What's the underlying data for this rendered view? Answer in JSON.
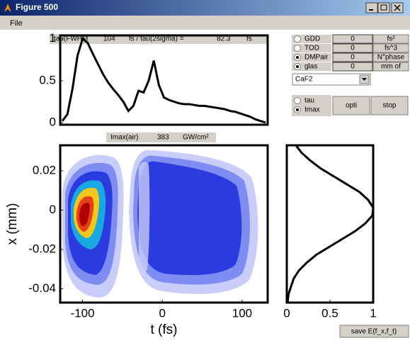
{
  "window": {
    "title": "Figure 500",
    "menu": [
      "File"
    ]
  },
  "info_bar": {
    "label": "tau(FWHM",
    "fwhm": "104",
    "middle": "fs / tau(2sigma) =",
    "sigma": "82.3",
    "unit": "fs"
  },
  "imax_bar": {
    "label": "Imax(air)",
    "value": "383",
    "unit": "GW/cm²"
  },
  "controls": {
    "rows": [
      {
        "label": "GDD",
        "checked": false,
        "value": "0",
        "unit": "fs²"
      },
      {
        "label": "TOD",
        "checked": false,
        "value": "0",
        "unit": "fs^3"
      },
      {
        "label": "DMPair",
        "checked": true,
        "value": "0",
        "unit": "N°phase"
      },
      {
        "label": "glas",
        "checked": true,
        "value": "0",
        "unit": "mm of"
      }
    ],
    "material": "CaF2",
    "mode": [
      {
        "label": "tau",
        "checked": false
      },
      {
        "label": "Imax",
        "checked": true
      }
    ],
    "buttons": [
      "opti",
      "stop"
    ],
    "save": "save E(f_x,f_t)"
  },
  "chart_data": [
    {
      "type": "line",
      "color": "#000000",
      "ylim": [
        -0.025,
        1.04
      ],
      "yticks": [
        0,
        0.5,
        1
      ],
      "values": [
        0.02,
        0.1,
        0.4,
        0.8,
        1.0,
        0.95,
        0.82,
        0.7,
        0.58,
        0.48,
        0.4,
        0.33,
        0.25,
        0.14,
        0.2,
        0.38,
        0.36,
        0.5,
        0.74,
        0.45,
        0.3,
        0.27,
        0.25,
        0.23,
        0.22,
        0.22,
        0.21,
        0.2,
        0.2,
        0.19,
        0.18,
        0.17,
        0.16,
        0.14,
        0.13,
        0.11,
        0.09,
        0.07,
        0.04,
        0.02,
        0.0
      ]
    },
    {
      "type": "contour",
      "xlabel": "t (fs)",
      "ylabel": "x (mm)",
      "xlim": [
        -128,
        132
      ],
      "ylim": [
        -0.047,
        0.033
      ],
      "xticks": [
        -100,
        0,
        100
      ],
      "yticks": [
        0.02,
        0,
        -0.02,
        -0.04
      ]
    },
    {
      "type": "profile",
      "color": "#000000",
      "xlim": [
        0,
        1
      ],
      "xticks": [
        0,
        0.5,
        1
      ],
      "ylim": [
        -0.047,
        0.033
      ],
      "y": [
        0.0333,
        0.0293,
        0.0253,
        0.0213,
        0.0173,
        0.0133,
        0.0093,
        0.0053,
        0.0013,
        -0.0027,
        -0.0067,
        -0.0107,
        -0.0147,
        -0.0187,
        -0.0227,
        -0.0267,
        -0.0307,
        -0.0347,
        -0.0387,
        -0.0427,
        -0.0467
      ],
      "values": [
        0.1,
        0.17,
        0.27,
        0.39,
        0.54,
        0.69,
        0.84,
        0.94,
        1.0,
        0.99,
        0.91,
        0.79,
        0.64,
        0.49,
        0.34,
        0.23,
        0.14,
        0.08,
        0.05,
        0.02,
        0.01
      ]
    }
  ]
}
